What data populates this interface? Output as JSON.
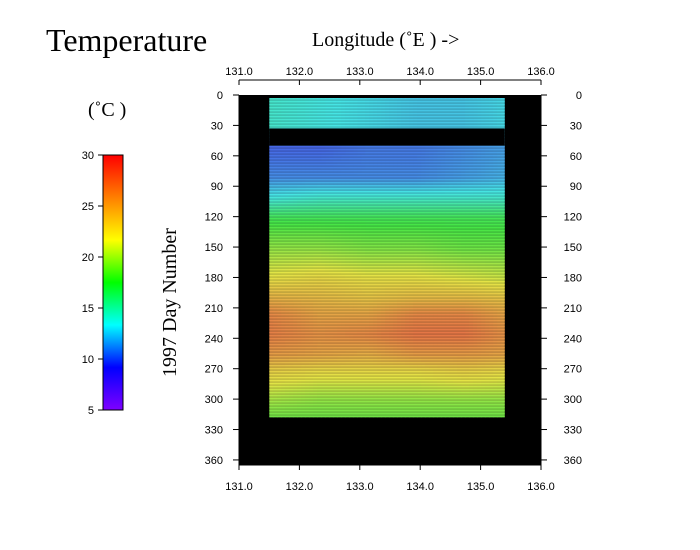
{
  "chart_data": {
    "type": "heatmap",
    "title": "Temperature",
    "xlabel": "Longitude (˚E ) ->",
    "ylabel": "1997 Day Number",
    "colorbar_label": "(˚C )",
    "x_ticks": [
      "131.0",
      "132.0",
      "133.0",
      "134.0",
      "135.0",
      "136.0"
    ],
    "y_ticks": [
      "0",
      "30",
      "60",
      "90",
      "120",
      "150",
      "180",
      "210",
      "240",
      "270",
      "300",
      "330",
      "360"
    ],
    "colorbar_ticks": [
      "30",
      "25",
      "20",
      "15",
      "10",
      "5"
    ],
    "xlim": [
      131.0,
      136.0
    ],
    "ylim": [
      0,
      365
    ],
    "clim": [
      5,
      30
    ],
    "data_extent": {
      "lon": [
        131.5,
        135.4
      ],
      "day": [
        3,
        318
      ]
    },
    "missing_days": [
      [
        33,
        50
      ]
    ],
    "colormap": [
      "#7f00ff",
      "#0000ff",
      "#00ffff",
      "#00ff00",
      "#ffff00",
      "#ff7f00",
      "#ff0000"
    ],
    "background_color": "#000000",
    "temperature_by_day": [
      {
        "day": 3,
        "values": [
          14,
          13.5,
          13,
          12.5,
          12.5,
          13
        ]
      },
      {
        "day": 30,
        "values": [
          14,
          13.5,
          13,
          12.5,
          12.5,
          13
        ]
      },
      {
        "day": 50,
        "values": [
          10,
          10,
          10.5,
          10.5,
          11,
          11.5
        ]
      },
      {
        "day": 80,
        "values": [
          11,
          11,
          11,
          11,
          11.5,
          12
        ]
      },
      {
        "day": 100,
        "values": [
          13.5,
          14,
          14,
          14,
          14,
          14
        ]
      },
      {
        "day": 120,
        "values": [
          17,
          17,
          17,
          17,
          17,
          17
        ]
      },
      {
        "day": 150,
        "values": [
          19.5,
          19.5,
          19,
          19,
          18.5,
          18.5
        ]
      },
      {
        "day": 180,
        "values": [
          22,
          22.5,
          22,
          22,
          21.5,
          21
        ]
      },
      {
        "day": 200,
        "values": [
          24.5,
          24,
          23.5,
          24,
          24,
          23.5
        ]
      },
      {
        "day": 215,
        "values": [
          26.5,
          25,
          25,
          26.5,
          26.5,
          25
        ]
      },
      {
        "day": 235,
        "values": [
          27,
          26,
          26.5,
          27.5,
          27.5,
          26
        ]
      },
      {
        "day": 255,
        "values": [
          25.5,
          25,
          24.5,
          25.5,
          25.5,
          25
        ]
      },
      {
        "day": 270,
        "values": [
          23,
          22.5,
          22.5,
          22.5,
          23,
          22.5
        ]
      },
      {
        "day": 300,
        "values": [
          20,
          19.5,
          19.5,
          19.5,
          19.5,
          19.5
        ]
      },
      {
        "day": 318,
        "values": [
          18.5,
          18.5,
          18.5,
          18.5,
          18.5,
          18.5
        ]
      }
    ],
    "sample_lons": [
      131.5,
      132.3,
      133.1,
      133.9,
      134.7,
      135.4
    ],
    "grid": false,
    "legend": "colorbar left"
  }
}
